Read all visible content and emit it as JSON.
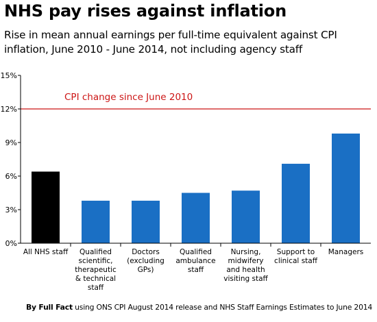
{
  "header": {
    "title": "NHS pay rises against inflation",
    "subtitle": "Rise in mean annual earnings per full-time equivalent against CPI inflation, June 2010 - June 2014, not including agency staff"
  },
  "footer": {
    "credit_bold": "By Full Fact",
    "credit_rest": " using ONS CPI August 2014 release and NHS Staff Earnings Estimates to June 2014"
  },
  "chart_data": {
    "type": "bar",
    "categories": [
      [
        "All NHS staff"
      ],
      [
        "Qualified",
        "scientific,",
        "therapeutic",
        "& technical",
        "staff"
      ],
      [
        "Doctors",
        "(excluding",
        "GPs)"
      ],
      [
        "Qualified",
        "ambulance",
        "staff"
      ],
      [
        "Nursing,",
        "midwifery",
        "and health",
        "visiting staff"
      ],
      [
        "Support to",
        "clinical staff"
      ],
      [
        "Managers"
      ]
    ],
    "values": [
      6.4,
      3.8,
      3.8,
      4.5,
      4.7,
      7.1,
      9.8
    ],
    "bar_colors": [
      "#000000",
      "#1a6fc4",
      "#1a6fc4",
      "#1a6fc4",
      "#1a6fc4",
      "#1a6fc4",
      "#1a6fc4"
    ],
    "ylim": [
      0,
      15
    ],
    "yticks": [
      0,
      3,
      6,
      9,
      12,
      15
    ],
    "ytick_labels": [
      "0%",
      "3%",
      "6%",
      "9%",
      "12%",
      "15%"
    ],
    "reference_line": {
      "value": 12,
      "label": "CPI change since June 2010",
      "color": "#cc1414"
    },
    "grid": false
  }
}
